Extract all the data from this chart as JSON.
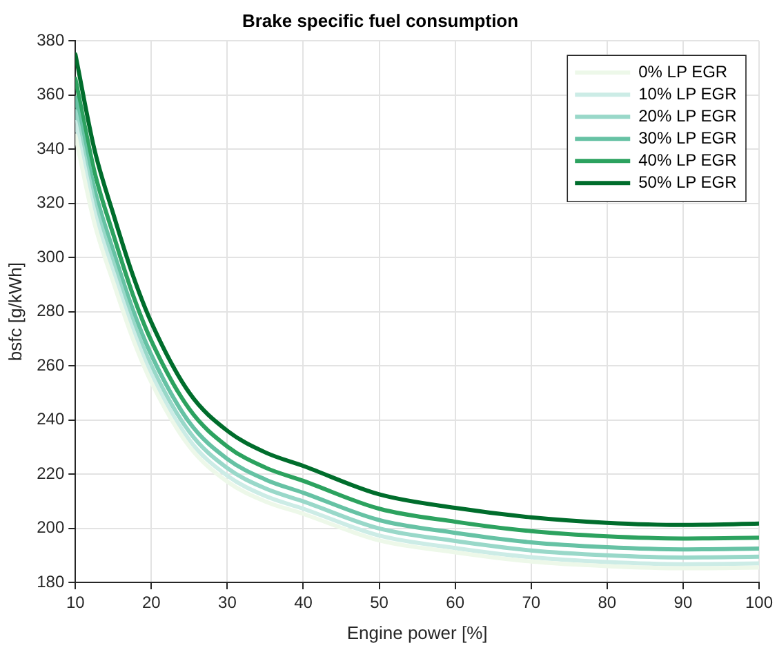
{
  "chart_data": {
    "type": "line",
    "title": "Brake specific fuel consumption",
    "xlabel": "Engine power [%]",
    "ylabel": "bsfc [g/kWh]",
    "x": [
      10,
      12.5,
      15,
      17.5,
      20,
      25,
      30,
      35,
      40,
      50,
      60,
      70,
      80,
      90,
      100
    ],
    "xlim": [
      10,
      100
    ],
    "xticks": [
      10,
      20,
      30,
      40,
      50,
      60,
      70,
      80,
      90,
      100
    ],
    "ylim": [
      180,
      380
    ],
    "yticks": [
      180,
      200,
      220,
      240,
      260,
      280,
      300,
      320,
      340,
      360,
      380
    ],
    "grid": true,
    "legend": "top right",
    "marker": "none",
    "line_style": "solid",
    "series": [
      {
        "name": "0% LP EGR",
        "color": "#edf8e9",
        "values": [
          345,
          312.8,
          290.8,
          270.5,
          253.9,
          230.2,
          217.2,
          209.9,
          205.3,
          195.5,
          191.1,
          187.7,
          186,
          185.2,
          185.5
        ]
      },
      {
        "name": "10% LP EGR",
        "color": "#ccece6",
        "values": [
          350,
          317.1,
          294.6,
          273.9,
          256.9,
          232.6,
          219.4,
          211.9,
          207.2,
          197.3,
          192.7,
          189.3,
          187.5,
          186.7,
          187
        ]
      },
      {
        "name": "20% LP EGR",
        "color": "#99d8c9",
        "values": [
          354,
          320.8,
          298.1,
          277.2,
          260.1,
          235.6,
          222.2,
          214.7,
          209.9,
          199.9,
          195.3,
          191.8,
          190,
          189.2,
          189.5
        ]
      },
      {
        "name": "30% LP EGR",
        "color": "#66c2a4",
        "values": [
          359,
          325.4,
          302.4,
          281.2,
          264,
          239.1,
          225.6,
          218,
          213.1,
          203,
          198.3,
          194.8,
          193,
          192.2,
          192.5
        ]
      },
      {
        "name": "40% LP EGR",
        "color": "#2ca25f",
        "values": [
          366,
          331.8,
          308.4,
          286.8,
          269.2,
          244,
          230.2,
          222.4,
          217.5,
          207.2,
          202.4,
          198.9,
          197,
          196.2,
          196.5
        ]
      },
      {
        "name": "50% LP EGR",
        "color": "#006d2c",
        "values": [
          375,
          340,
          316,
          294,
          276,
          250,
          236,
          228,
          223,
          212.5,
          207.5,
          204,
          202,
          201.2,
          201.7
        ]
      }
    ]
  }
}
